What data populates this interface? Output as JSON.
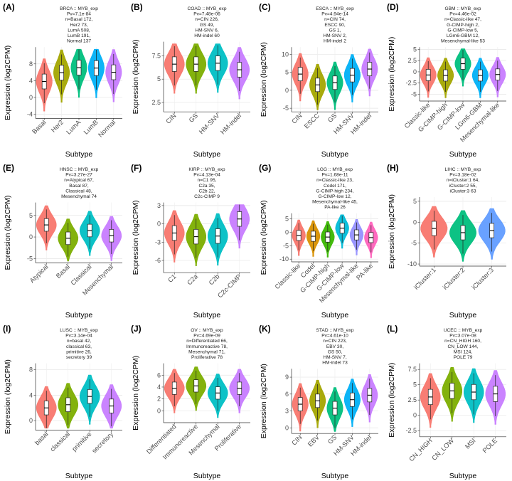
{
  "figure": {
    "colors": {
      "pink": "#F8766D",
      "olive": "#A3A500",
      "teal": "#00BF7D",
      "green": "#7CAE00",
      "cyan": "#00BFC4",
      "blue": "#00B0F6",
      "slate": "#619CFF",
      "purple": "#C77CFF",
      "magenta": "#E76BF3",
      "orange": "#D89000",
      "grass": "#39B600",
      "aqua": "#00BCD8",
      "lilac": "#9590FF",
      "fuchsia": "#FF62BC"
    }
  },
  "chart_data": [
    {
      "type": "violin",
      "panel": "(A)",
      "title_lines": [
        "BRCA :: MYB_exp",
        "Pv=7.1e-84",
        "n=Basal 172,",
        "Her2 73,",
        "LumA 508,",
        "LumB 191,",
        "Normal 137"
      ],
      "categories": [
        "Basal",
        "Her2",
        "LumA",
        "LumB",
        "Normal"
      ],
      "medians": [
        3.8,
        5.9,
        7.1,
        7.0,
        6.0
      ],
      "ylim": [
        -5,
        12
      ],
      "yticks": [
        -4,
        0,
        4,
        8
      ],
      "xlabel": "Subtype",
      "ylabel": "Expression (log2CPM)",
      "colors": [
        "pink",
        "olive",
        "teal",
        "blue",
        "purple"
      ]
    },
    {
      "type": "violin",
      "panel": "(B)",
      "title_lines": [
        "COAD :: MYB_exp",
        "Pv=7.48e-06",
        "n=CIN 226,",
        "GS 49,",
        "HM-SNV 6,",
        "HM-indel 60"
      ],
      "categories": [
        "CIN",
        "GS",
        "HM-SNV",
        "HM-indel"
      ],
      "medians": [
        6.6,
        6.6,
        6.7,
        6.0
      ],
      "ylim": [
        1.5,
        9.0
      ],
      "yticks": [
        2.5,
        5.0,
        7.5
      ],
      "xlabel": "Subtype",
      "ylabel": "Expression (log2CPM)",
      "colors": [
        "pink",
        "green",
        "cyan",
        "purple"
      ]
    },
    {
      "type": "violin",
      "panel": "(C)",
      "title_lines": [
        "ESCA :: MYB_exp",
        "Pv=4.94e-14",
        "n=CIN 74,",
        "ESCC 90,",
        "GS 1,",
        "HM-SNV 2,",
        "HM-indel 2"
      ],
      "categories": [
        "CIN",
        "ESCC",
        "GS",
        "HM-SNV",
        "HM-indel"
      ],
      "medians": [
        4.5,
        1.5,
        2.1,
        4.2,
        5.9
      ],
      "ylim": [
        -6,
        12
      ],
      "yticks": [
        -5,
        0,
        5,
        10
      ],
      "xlabel": "Subtype",
      "ylabel": "Expression (log2CPM)",
      "colors": [
        "pink",
        "olive",
        "teal",
        "blue",
        "purple"
      ]
    },
    {
      "type": "violin",
      "panel": "(D)",
      "title_lines": [
        "GBM :: MYB_exp",
        "Pv=4.46e-02",
        "n=Classic-like 47,",
        "G-CIMP-high 2,",
        "G-CIMP-low 5,",
        "LGm6-GBM 12,",
        "Mesenchymal-like 53"
      ],
      "categories": [
        "Classic-like",
        "G-CIMP-high",
        "G-CIMP-low",
        "LGm6-GBM",
        "Mesenchymal-like"
      ],
      "medians": [
        -0.7,
        -0.8,
        1.8,
        -0.8,
        -0.6
      ],
      "ylim": [
        -6.5,
        5.5
      ],
      "yticks": [
        -5.0,
        -2.5,
        0.0,
        2.5,
        5.0
      ],
      "xlabel": "Subtype",
      "ylabel": "Expression (log2CPM)",
      "colors": [
        "pink",
        "olive",
        "teal",
        "blue",
        "purple"
      ]
    },
    {
      "type": "violin",
      "panel": "(E)",
      "title_lines": [
        "HNSC :: MYB_exp",
        "Pv=3.27e-27",
        "n=Atypical 67,",
        "Basal 87,",
        "Classical 48,",
        "Mesenchymal 74"
      ],
      "categories": [
        "Atypical",
        "Basal",
        "Classical",
        "Mesenchymal"
      ],
      "medians": [
        2.8,
        -0.3,
        1.5,
        0.3
      ],
      "ylim": [
        -6,
        8
      ],
      "yticks": [
        -5,
        0,
        5
      ],
      "xlabel": "Subtype",
      "ylabel": "Expression (log2CPM)",
      "colors": [
        "pink",
        "green",
        "cyan",
        "purple"
      ]
    },
    {
      "type": "violin",
      "panel": "(F)",
      "title_lines": [
        "KIRP :: MYB_exp",
        "Pv=4.13e-04",
        "n=C1 95,",
        "C2a 35,",
        "C2b 22,",
        "C2c-CIMP 9"
      ],
      "categories": [
        "C1",
        "C2a",
        "C2b",
        "C2c-CIMP"
      ],
      "medians": [
        -1.5,
        -2.1,
        -2.0,
        0.8
      ],
      "ylim": [
        -8,
        3.5
      ],
      "yticks": [
        -6,
        -3,
        0,
        3
      ],
      "xlabel": "Subtype",
      "ylabel": "Expression (log2CPM)",
      "colors": [
        "pink",
        "green",
        "cyan",
        "purple"
      ]
    },
    {
      "type": "violin",
      "panel": "(G)",
      "title_lines": [
        "LGG :: MYB_exp",
        "Pv=1.68e-11",
        "n=Classic-like 23,",
        "Codel 171,",
        "G-CIMP-high 234,",
        "G-CIMP-low 12,",
        "Mesenchymal-like 45,",
        "PA-like 26"
      ],
      "categories": [
        "Classic-like",
        "Codel",
        "G-CIMP-high",
        "G-CIMP-low",
        "Mesenchymal-like",
        "PA-like"
      ],
      "medians": [
        -1.2,
        -1.5,
        -1.8,
        1.5,
        -1.0,
        -2.0
      ],
      "ylim": [
        -11,
        7
      ],
      "yticks": [
        -10,
        -5,
        0,
        5
      ],
      "xlabel": "Subtype",
      "ylabel": "Expression (log2CPM)",
      "colors": [
        "pink",
        "orange",
        "grass",
        "aqua",
        "lilac",
        "fuchsia"
      ]
    },
    {
      "type": "violin",
      "panel": "(H)",
      "title_lines": [
        "LIHC :: MYB_exp",
        "Pv=3.18e-02",
        "n=iCluster:1 64,",
        "iCluster:2 55,",
        "iCluster:3 63"
      ],
      "categories": [
        "iCluster:1",
        "iCluster:2",
        "iCluster:3"
      ],
      "medians": [
        -1.5,
        -2.5,
        -2.0
      ],
      "ylim": [
        -10.5,
        6
      ],
      "yticks": [
        -10,
        -5,
        0,
        5
      ],
      "xlabel": "Subtype",
      "ylabel": "Expression (log2CPM)",
      "colors": [
        "pink",
        "teal",
        "slate"
      ]
    },
    {
      "type": "violin",
      "panel": "(I)",
      "title_lines": [
        "LUSC :: MYB_exp",
        "Pv=3.14e-04",
        "n=basal 42,",
        "classical 63,",
        "primitive 26,",
        "secretory 39"
      ],
      "categories": [
        "basal",
        "classical",
        "primitive",
        "secretory"
      ],
      "medians": [
        2.0,
        2.5,
        3.8,
        2.3
      ],
      "ylim": [
        -1.5,
        9
      ],
      "yticks": [
        0,
        4,
        8
      ],
      "xlabel": "Subtype",
      "ylabel": "Expression (log2CPM)",
      "colors": [
        "pink",
        "green",
        "cyan",
        "purple"
      ]
    },
    {
      "type": "violin",
      "panel": "(J)",
      "title_lines": [
        "OV :: MYB_exp",
        "Pv=4.69e-09",
        "n=Differentiated 66,",
        "Immunoreactive 78,",
        "Mesenchymal 71,",
        "Proliferative 78"
      ],
      "categories": [
        "Differentiated",
        "Immunoreactive",
        "Mesenchymal",
        "Proliferative"
      ],
      "medians": [
        3.8,
        4.2,
        3.0,
        3.8
      ],
      "ylim": [
        -2,
        8
      ],
      "yticks": [
        0,
        2,
        4,
        6
      ],
      "xlabel": "Subtype",
      "ylabel": "Expression (log2CPM)",
      "colors": [
        "pink",
        "green",
        "cyan",
        "purple"
      ]
    },
    {
      "type": "violin",
      "panel": "(K)",
      "title_lines": [
        "STAD :: MYB_exp",
        "Pv=4.61e-10",
        "n=CIN 223,",
        "EBV 30,",
        "GS 50,",
        "HM-SNV 7,",
        "HM-indel 73"
      ],
      "categories": [
        "CIN",
        "EBV",
        "GS",
        "HM-SNV",
        "HM-indel"
      ],
      "medians": [
        4.2,
        4.8,
        3.5,
        5.0,
        5.8
      ],
      "ylim": [
        -1,
        10.5
      ],
      "yticks": [
        0,
        3,
        6,
        9
      ],
      "xlabel": "Subtype",
      "ylabel": "Expression (log2CPM)",
      "colors": [
        "pink",
        "olive",
        "teal",
        "blue",
        "purple"
      ]
    },
    {
      "type": "violin",
      "panel": "(L)",
      "title_lines": [
        "UCEC :: MYB_exp",
        "Pv=3.07e-08",
        "n=CN_HIGH 160,",
        "CN_LOW 144,",
        "MSI 124,",
        "POLE 79"
      ],
      "categories": [
        "CN_HIGH",
        "CN_LOW",
        "MSI",
        "POLE"
      ],
      "medians": [
        3.0,
        4.0,
        3.8,
        3.5
      ],
      "ylim": [
        -3.5,
        8.5
      ],
      "yticks": [
        -2.5,
        0.0,
        2.5,
        5.0,
        7.5
      ],
      "xlabel": "Subtype",
      "ylabel": "Expression (log2CPM)",
      "colors": [
        "pink",
        "green",
        "cyan",
        "purple"
      ]
    }
  ]
}
